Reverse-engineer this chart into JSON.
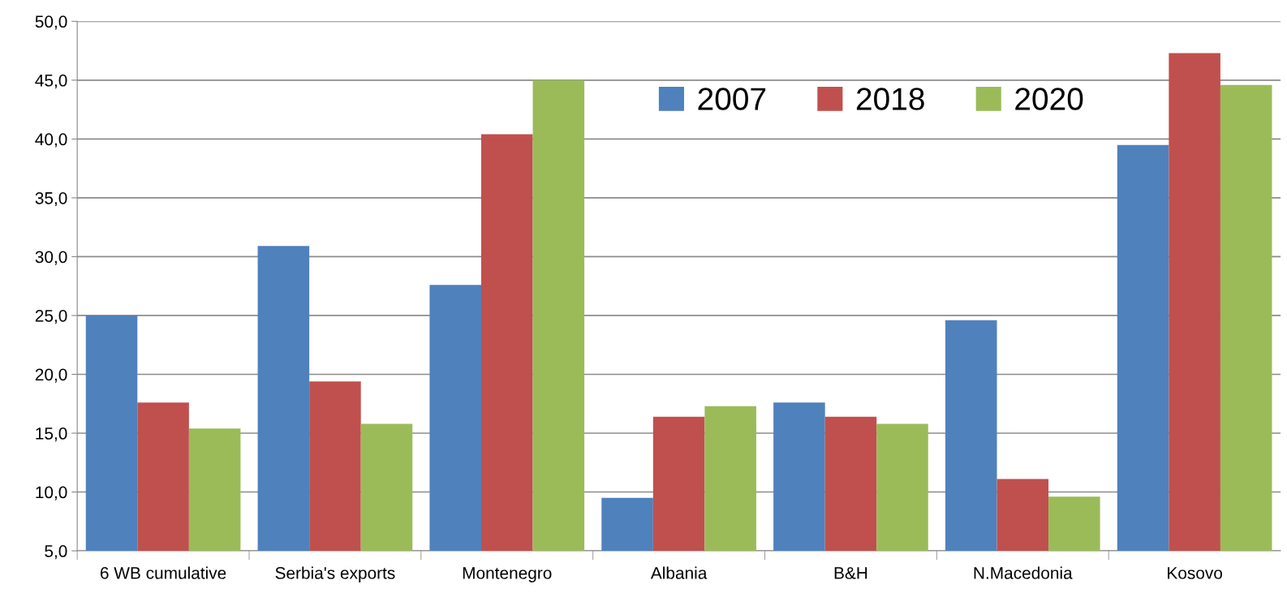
{
  "chart_data": {
    "type": "bar",
    "categories": [
      "6 WB cumulative",
      "Serbia's exports",
      "Montenegro",
      "Albania",
      "B&H",
      "N.Macedonia",
      "Kosovo"
    ],
    "series": [
      {
        "name": "2007",
        "color": "#4f81bd",
        "values": [
          25.0,
          30.9,
          27.6,
          9.5,
          17.6,
          24.6,
          39.5
        ]
      },
      {
        "name": "2018",
        "color": "#c0504d",
        "values": [
          17.6,
          19.4,
          40.4,
          16.4,
          16.4,
          11.1,
          47.3
        ]
      },
      {
        "name": "2020",
        "color": "#9bbb59",
        "values": [
          15.4,
          15.8,
          45.0,
          17.3,
          15.8,
          9.6,
          44.6
        ]
      }
    ],
    "ylim": [
      5,
      50
    ],
    "yticks": [
      {
        "value": 5,
        "label": "5,0"
      },
      {
        "value": 10,
        "label": "10,0"
      },
      {
        "value": 15,
        "label": "15,0"
      },
      {
        "value": 20,
        "label": "20,0"
      },
      {
        "value": 25,
        "label": "25,0"
      },
      {
        "value": 30,
        "label": "30,0"
      },
      {
        "value": 35,
        "label": "35,0"
      },
      {
        "value": 40,
        "label": "40,0"
      },
      {
        "value": 45,
        "label": "45,0"
      },
      {
        "value": 50,
        "label": "50,0"
      }
    ],
    "grid": "y",
    "legend": "top"
  }
}
